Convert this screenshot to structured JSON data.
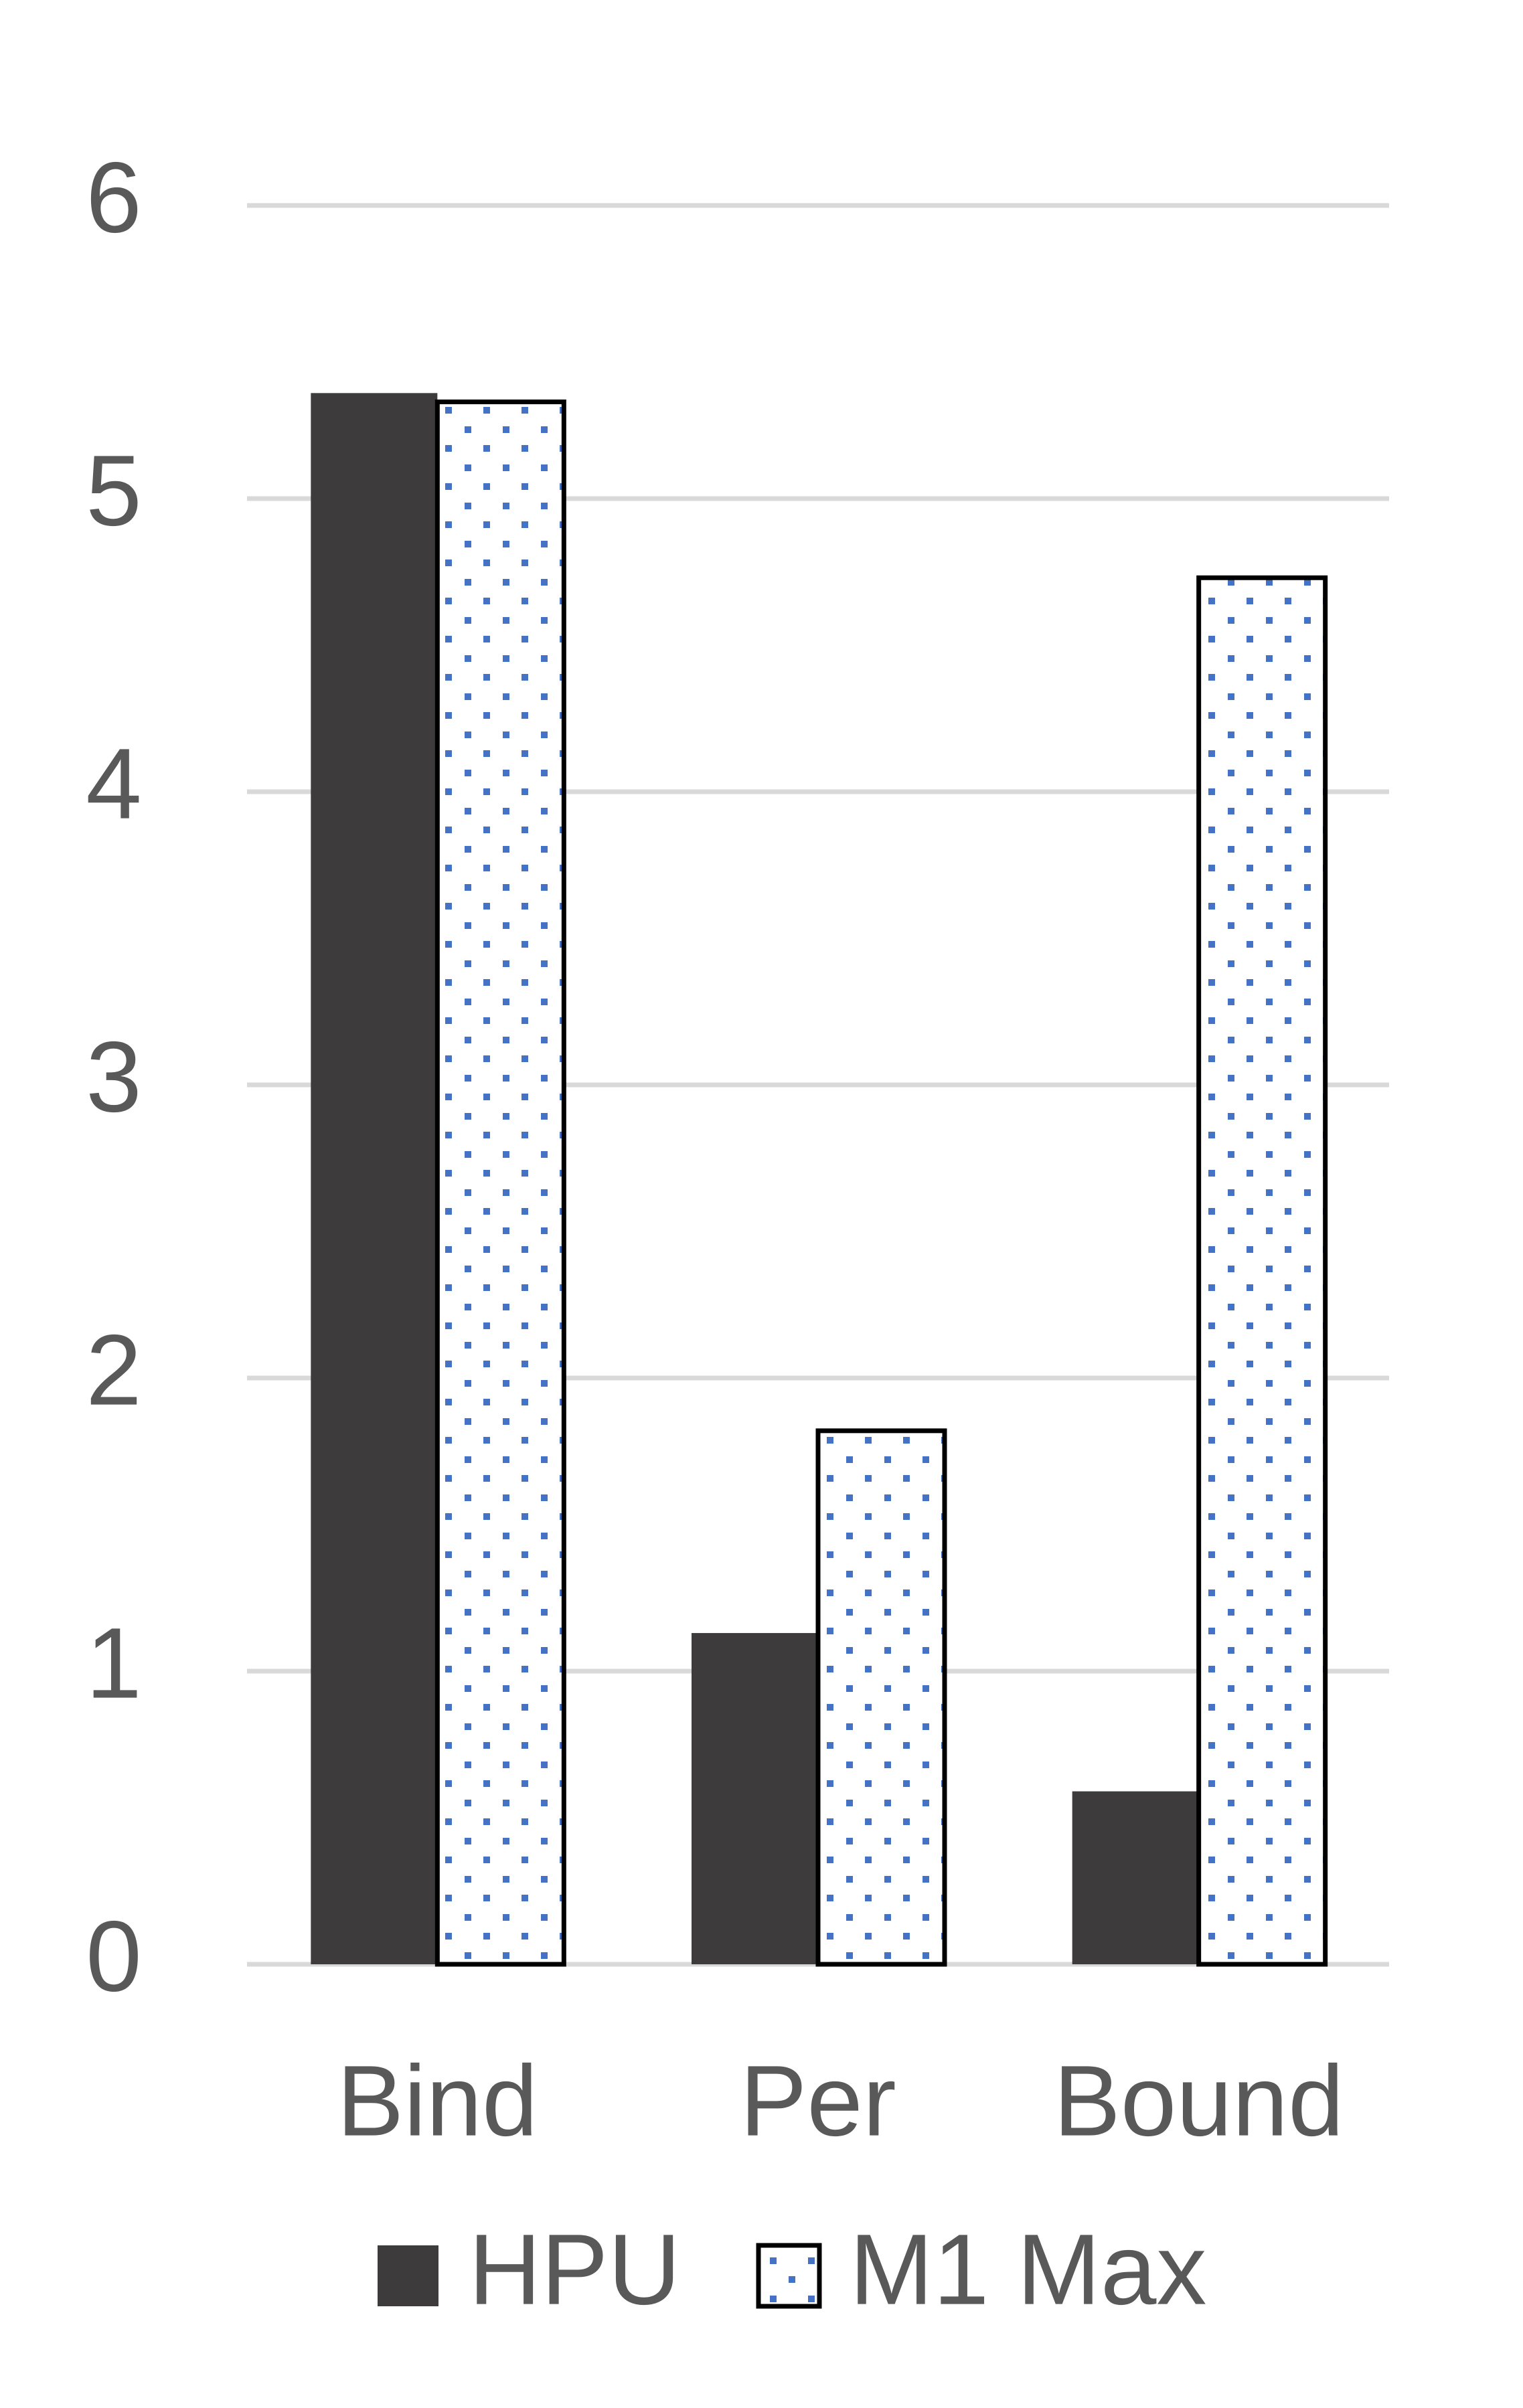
{
  "chart_data": {
    "type": "bar",
    "categories": [
      "Bind",
      "Per",
      "Bound"
    ],
    "series": [
      {
        "name": "HPU",
        "color": "#3d3b3c",
        "values": [
          5.36,
          1.13,
          0.59
        ]
      },
      {
        "name": "M1 Max",
        "color": "#ffffff",
        "dot_color": "#4472c4",
        "values": [
          5.33,
          1.82,
          4.73
        ]
      }
    ],
    "ylim": [
      0,
      6
    ],
    "yticks": [
      0,
      1,
      2,
      3,
      4,
      5,
      6
    ],
    "grid": true,
    "legend": "bottom"
  }
}
